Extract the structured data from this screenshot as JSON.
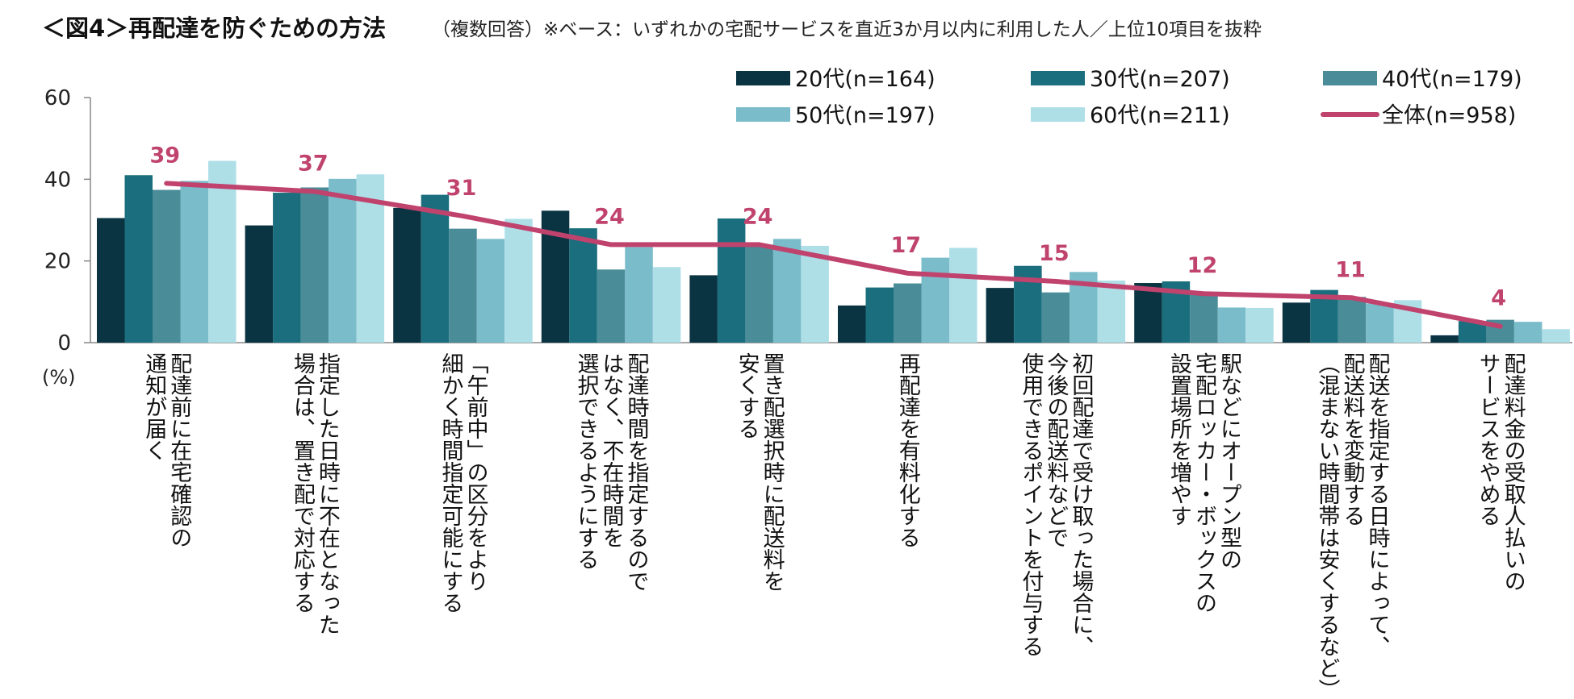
{
  "title": {
    "main": "＜図4＞再配達を防ぐための方法",
    "sub": "（複数回答）※ベース：いずれかの宅配サービスを直近3か月以内に利用した人／上位10項目を抜粋"
  },
  "chart_data": {
    "type": "bar",
    "ylim": [
      0,
      60
    ],
    "yticks": [
      0,
      20,
      40,
      60
    ],
    "ylabel": "(%)",
    "legend_position": "top-right",
    "categories": [
      [
        "配達前に在宅確認の",
        "通知が届く"
      ],
      [
        "指定した日時に不在となった",
        "場合は、置き配で対応する"
      ],
      [
        "「午前中」の区分をより",
        "細かく時間指定可能にする"
      ],
      [
        "配達時間を指定するので",
        "はなく、不在時間を",
        "選択できるようにする"
      ],
      [
        "置き配選択時に配送料を",
        "安くする"
      ],
      [
        "再配達を有料化する"
      ],
      [
        "初回配達で受け取った場合に、",
        "今後の配送料などで",
        "使用できるポイントを付与する"
      ],
      [
        "駅などにオープン型の",
        "宅配ロッカー・ボックスの",
        "設置場所を増やす"
      ],
      [
        "配送を指定する日時によって、",
        "配送料を変動する",
        "（混まない時間帯は安くするなど）"
      ],
      [
        "配達料金の受取人払いの",
        "サービスをやめる"
      ]
    ],
    "series": [
      {
        "name": "20代(n=164)",
        "color": "#0b3442",
        "values": [
          30.5,
          28.7,
          33.0,
          32.3,
          16.5,
          9.1,
          13.4,
          14.6,
          9.8,
          1.8
        ]
      },
      {
        "name": "30代(n=207)",
        "color": "#1a6e7d",
        "values": [
          41.0,
          36.7,
          36.2,
          28.0,
          30.4,
          13.5,
          18.8,
          15.0,
          12.9,
          5.3
        ]
      },
      {
        "name": "40代(n=179)",
        "color": "#4a8c98",
        "values": [
          37.4,
          38.0,
          27.9,
          17.9,
          24.0,
          14.5,
          12.3,
          12.0,
          11.2,
          5.6
        ]
      },
      {
        "name": "50代(n=197)",
        "color": "#7bbccb",
        "values": [
          39.6,
          40.1,
          25.4,
          23.4,
          25.4,
          20.8,
          17.3,
          8.6,
          9.6,
          5.1
        ]
      },
      {
        "name": "60代(n=211)",
        "color": "#aedfe7",
        "values": [
          44.5,
          41.2,
          30.3,
          18.5,
          23.7,
          23.2,
          15.2,
          8.5,
          10.4,
          3.3
        ]
      }
    ],
    "total": {
      "name": "全体(n=958)",
      "color": "#c0436e",
      "values": [
        39,
        37,
        31,
        24,
        24,
        17,
        15,
        12,
        11,
        4
      ],
      "labels": [
        "39",
        "37",
        "31",
        "24",
        "24",
        "17",
        "15",
        "12",
        "11",
        "4"
      ]
    }
  }
}
